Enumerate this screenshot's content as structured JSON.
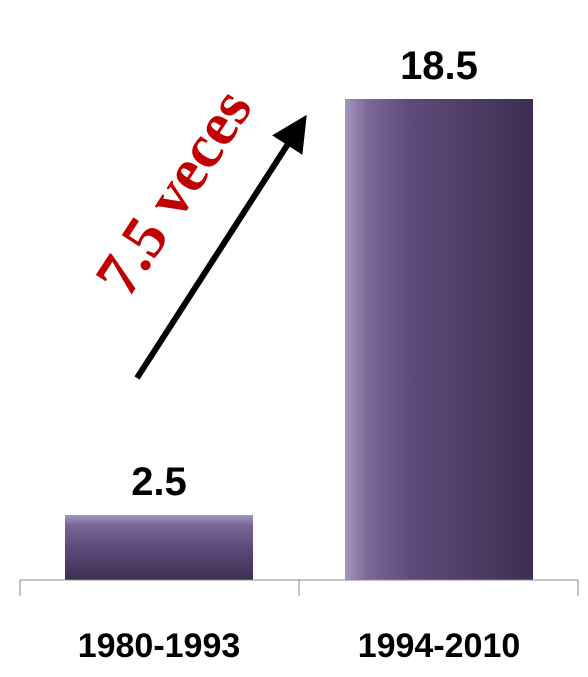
{
  "chart_data": {
    "type": "bar",
    "categories": [
      "1980-1993",
      "1994-2010"
    ],
    "values": [
      2.5,
      18.5
    ],
    "data_labels": [
      "2.5",
      "18.5"
    ],
    "title": "",
    "xlabel": "",
    "ylabel": "",
    "ylim": [
      0,
      20
    ],
    "grid": false,
    "legend": "none",
    "annotation": {
      "text": "7.5 veces",
      "color": "#c00000",
      "arrow": "from first bar up toward second bar"
    },
    "colors": {
      "bar_dark": "#3d2e50",
      "bar_mid": "#5e4a7a",
      "bar_light": "#a596bd"
    }
  }
}
